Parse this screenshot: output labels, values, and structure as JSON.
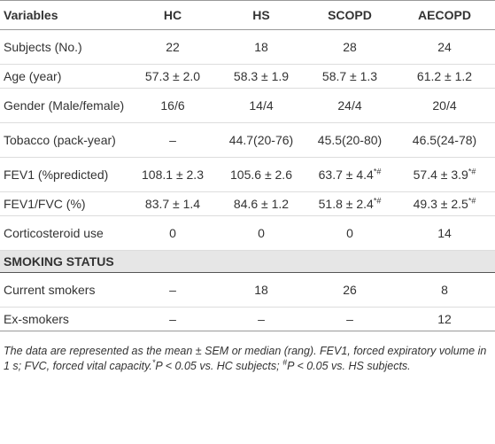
{
  "table": {
    "header": [
      "Variables",
      "HC",
      "HS",
      "SCOPD",
      "AECOPD"
    ],
    "rows": [
      [
        {
          "text": "Subjects (No.)"
        },
        {
          "text": "22"
        },
        {
          "text": "18"
        },
        {
          "text": "28"
        },
        {
          "text": "24"
        }
      ],
      [
        {
          "text": "Age (year)"
        },
        {
          "text": "57.3 ± 2.0"
        },
        {
          "text": "58.3 ± 1.9"
        },
        {
          "text": "58.7 ± 1.3"
        },
        {
          "text": "61.2 ± 1.2"
        }
      ],
      [
        {
          "text": "Gender (Male/female)"
        },
        {
          "text": "16/6"
        },
        {
          "text": "14/4"
        },
        {
          "text": "24/4"
        },
        {
          "text": "20/4"
        }
      ],
      [
        {
          "text": "Tobacco (pack-year)"
        },
        {
          "text": "–"
        },
        {
          "text": "44.7(20-76)"
        },
        {
          "text": "45.5(20-80)"
        },
        {
          "text": "46.5(24-78)"
        }
      ],
      [
        {
          "text": "FEV1 (%predicted)"
        },
        {
          "text": "108.1 ± 2.3"
        },
        {
          "text": "105.6 ± 2.6"
        },
        {
          "text": "63.7 ± 4.4",
          "sup": "*#"
        },
        {
          "text": "57.4 ± 3.9",
          "sup": "*#"
        }
      ],
      [
        {
          "text": "FEV1/FVC (%)"
        },
        {
          "text": "83.7 ± 1.4"
        },
        {
          "text": "84.6 ± 1.2"
        },
        {
          "text": "51.8 ± 2.4",
          "sup": "*#"
        },
        {
          "text": "49.3 ± 2.5",
          "sup": "*#"
        }
      ],
      [
        {
          "text": "Corticosteroid use"
        },
        {
          "text": "0"
        },
        {
          "text": "0"
        },
        {
          "text": "0"
        },
        {
          "text": "14"
        }
      ]
    ],
    "section": "SMOKING STATUS",
    "section_rows": [
      [
        {
          "text": "Current smokers"
        },
        {
          "text": "–"
        },
        {
          "text": "18"
        },
        {
          "text": "26"
        },
        {
          "text": "8"
        }
      ],
      [
        {
          "text": "Ex-smokers"
        },
        {
          "text": "–"
        },
        {
          "text": "–"
        },
        {
          "text": "–"
        },
        {
          "text": "12"
        }
      ]
    ]
  },
  "footnote": [
    {
      "text": "The data are represented as the mean ± SEM or median (rang). FEV1, forced expiratory volume in 1 s; FVC, forced vital capacity."
    },
    {
      "sup": "*"
    },
    {
      "text": "P < 0.05 vs. HC subjects; "
    },
    {
      "sup": "#"
    },
    {
      "text": "P < 0.05 vs. HS subjects."
    }
  ]
}
